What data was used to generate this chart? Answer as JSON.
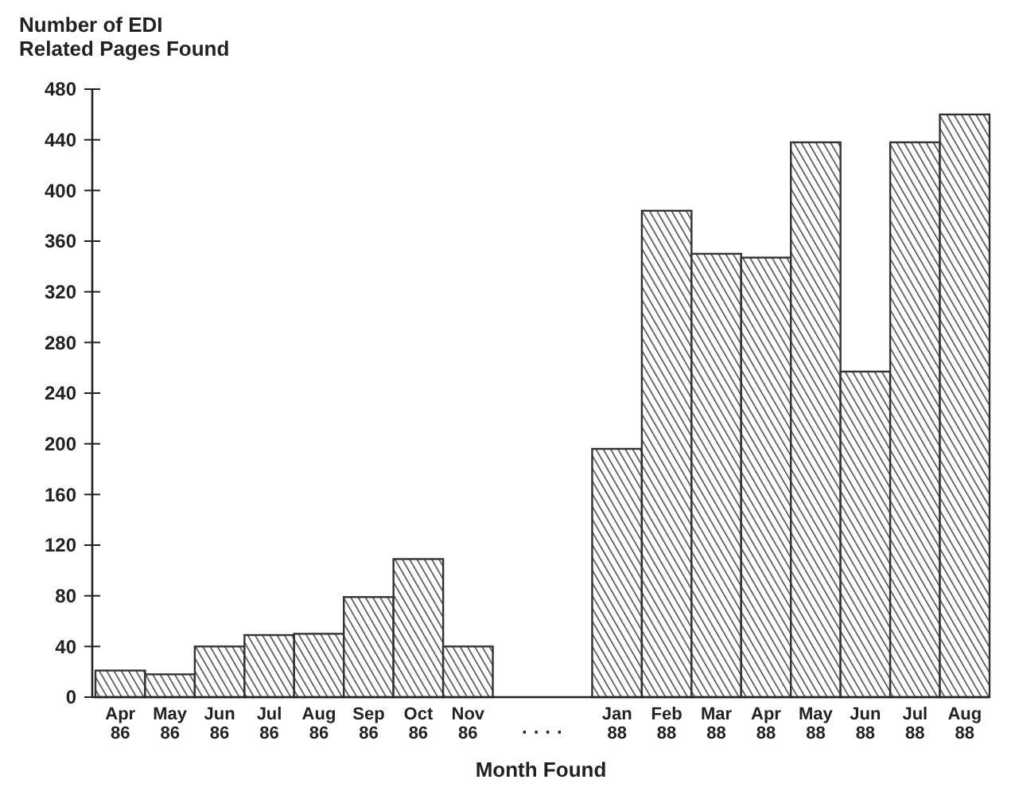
{
  "chart_data": {
    "type": "bar",
    "ylabel": "Number of EDI\nRelated Pages Found",
    "xlabel": "Month Found",
    "categories": [
      "Apr\n86",
      "May\n86",
      "Jun\n86",
      "Jul\n86",
      "Aug\n86",
      "Sep\n86",
      "Oct\n86",
      "Nov\n86",
      null,
      null,
      "Jan\n88",
      "Feb\n88",
      "Mar\n88",
      "Apr\n88",
      "May\n88",
      "Jun\n88",
      "Jul\n88",
      "Aug\n88"
    ],
    "values": [
      21,
      18,
      40,
      49,
      50,
      79,
      109,
      40,
      null,
      null,
      196,
      384,
      350,
      347,
      438,
      257,
      438,
      460
    ],
    "color": "#333333",
    "ylim": [
      0,
      480
    ],
    "yticks": [
      0,
      40,
      80,
      120,
      160,
      200,
      240,
      280,
      320,
      360,
      400,
      440,
      480
    ],
    "annotations": [
      "· · · ·"
    ]
  }
}
